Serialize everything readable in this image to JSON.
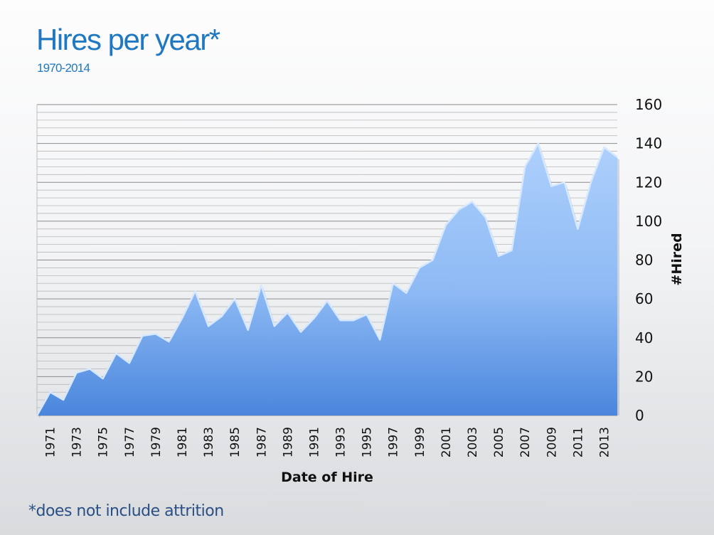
{
  "header": {
    "title": "Hires per year*",
    "subtitle": "1970-2014"
  },
  "footnote": "*does not include attrition",
  "colors": {
    "title": "#1f78c1",
    "area_top": "#a9cdfb",
    "area_bottom": "#4a86dc",
    "gridline": "#8a8a8a"
  },
  "chart_data": {
    "type": "area",
    "xlabel": "Date of Hire",
    "ylabel": "#Hired",
    "ylim": [
      0,
      160
    ],
    "y_ticks": [
      0,
      20,
      40,
      60,
      80,
      100,
      120,
      140,
      160
    ],
    "y_axis_side": "right",
    "grid": true,
    "x_tick_labels": [
      "1971",
      "1973",
      "1975",
      "1977",
      "1979",
      "1981",
      "1983",
      "1985",
      "1987",
      "1989",
      "1991",
      "1993",
      "1995",
      "1997",
      "1999",
      "2001",
      "2003",
      "2005",
      "2007",
      "2009",
      "2011",
      "2013"
    ],
    "series": [
      {
        "x": [
          1970,
          1971,
          1972,
          1973,
          1974,
          1975,
          1976,
          1977,
          1978,
          1979,
          1980,
          1981,
          1982,
          1983,
          1984,
          1985,
          1986,
          1987,
          1988,
          1989,
          1990,
          1991,
          1992,
          1993,
          1994,
          1995,
          1996,
          1997,
          1998,
          1999,
          2000,
          2001,
          2002,
          2003,
          2004,
          2005,
          2006,
          2007,
          2008,
          2009,
          2010,
          2011,
          2012,
          2013,
          2014
        ],
        "values": [
          0,
          12,
          8,
          22,
          24,
          19,
          32,
          27,
          41,
          42,
          38,
          50,
          64,
          46,
          51,
          60,
          44,
          67,
          46,
          53,
          43,
          50,
          59,
          49,
          49,
          52,
          39,
          68,
          63,
          76,
          80,
          98,
          106,
          110,
          102,
          82,
          85,
          128,
          140,
          118,
          120,
          96,
          120,
          138,
          133
        ]
      }
    ]
  }
}
